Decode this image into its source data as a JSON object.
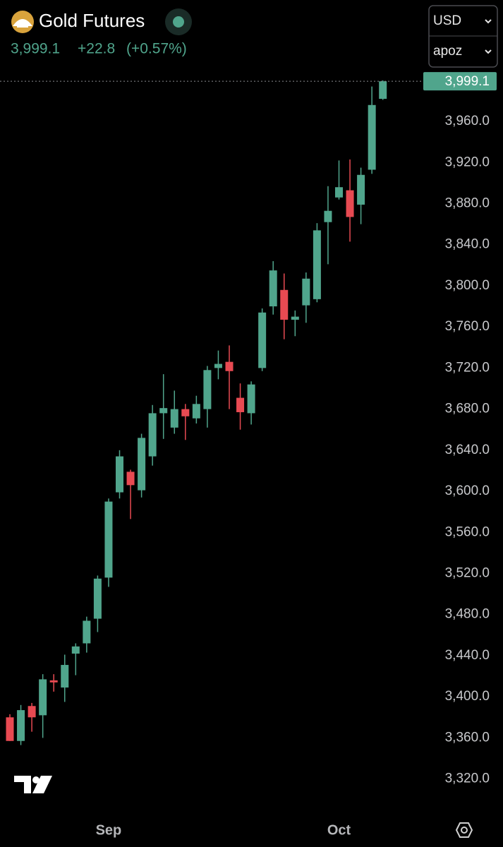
{
  "header": {
    "title": "Gold Futures",
    "change": "+22.8",
    "change_percent": "(+0.57%)",
    "currency": "USD",
    "unit": "apoz"
  },
  "chart_data": {
    "type": "candlestick",
    "up_color": "#50a58c",
    "down_color": "#e84a52",
    "grid": false,
    "categories": [
      null,
      null,
      null,
      null,
      null,
      null,
      null,
      null,
      null,
      "Sep",
      null,
      null,
      null,
      null,
      null,
      null,
      null,
      null,
      null,
      null,
      null,
      null,
      null,
      null,
      null,
      null,
      null,
      null,
      null,
      null,
      "Oct",
      null,
      null,
      null,
      null
    ],
    "open": [
      3380,
      3357,
      3391,
      3382,
      3416,
      3409,
      3442,
      3452,
      3476,
      3516,
      3599,
      3619,
      3601,
      3634,
      3676,
      3662,
      3680,
      3671,
      3680,
      3720,
      3726,
      3691,
      3676,
      3720,
      3780,
      3796,
      3767,
      3781,
      3787,
      3862,
      3886,
      3893,
      3879,
      3913,
      3982
    ],
    "high": [
      3383,
      3392,
      3394,
      3422,
      3422,
      3441,
      3452,
      3478,
      3518,
      3593,
      3640,
      3621,
      3656,
      3684,
      3714,
      3698,
      3685,
      3693,
      3722,
      3737,
      3742,
      3705,
      3707,
      3778,
      3824,
      3812,
      3776,
      3813,
      3861,
      3897,
      3922,
      3923,
      3915,
      3994,
      4000
    ],
    "low": [
      3357,
      3353,
      3366,
      3360,
      3405,
      3395,
      3421,
      3443,
      3463,
      3507,
      3593,
      3573,
      3594,
      3625,
      3651,
      3656,
      3650,
      3666,
      3662,
      3709,
      3680,
      3660,
      3665,
      3717,
      3772,
      3748,
      3751,
      3764,
      3784,
      3821,
      3884,
      3843,
      3860,
      3909,
      3981
    ],
    "close": [
      3357,
      3387,
      3380,
      3417,
      3414,
      3431,
      3449,
      3474,
      3515,
      3590,
      3634,
      3606,
      3652,
      3676,
      3681,
      3680,
      3673,
      3685,
      3718,
      3724,
      3717,
      3677,
      3704,
      3774,
      3815,
      3767,
      3770,
      3807,
      3854,
      3873,
      3896,
      3867,
      3908,
      3976,
      3999.1
    ],
    "price_tag": {
      "value": 3999.1,
      "label": "3,999.1"
    },
    "ylim": [
      3295,
      4009.5
    ],
    "yticks": [
      {
        "value": 3320,
        "label": "3,320.0"
      },
      {
        "value": 3360,
        "label": "3,360.0"
      },
      {
        "value": 3400,
        "label": "3,400.0"
      },
      {
        "value": 3440,
        "label": "3,440.0"
      },
      {
        "value": 3480,
        "label": "3,480.0"
      },
      {
        "value": 3520,
        "label": "3,520.0"
      },
      {
        "value": 3560,
        "label": "3,560.0"
      },
      {
        "value": 3600,
        "label": "3,600.0"
      },
      {
        "value": 3640,
        "label": "3,640.0"
      },
      {
        "value": 3680,
        "label": "3,680.0"
      },
      {
        "value": 3720,
        "label": "3,720.0"
      },
      {
        "value": 3760,
        "label": "3,760.0"
      },
      {
        "value": 3800,
        "label": "3,800.0"
      },
      {
        "value": 3840,
        "label": "3,840.0"
      },
      {
        "value": 3880,
        "label": "3,880.0"
      },
      {
        "value": 3920,
        "label": "3,920.0"
      },
      {
        "value": 3960,
        "label": "3,960.0"
      }
    ]
  }
}
